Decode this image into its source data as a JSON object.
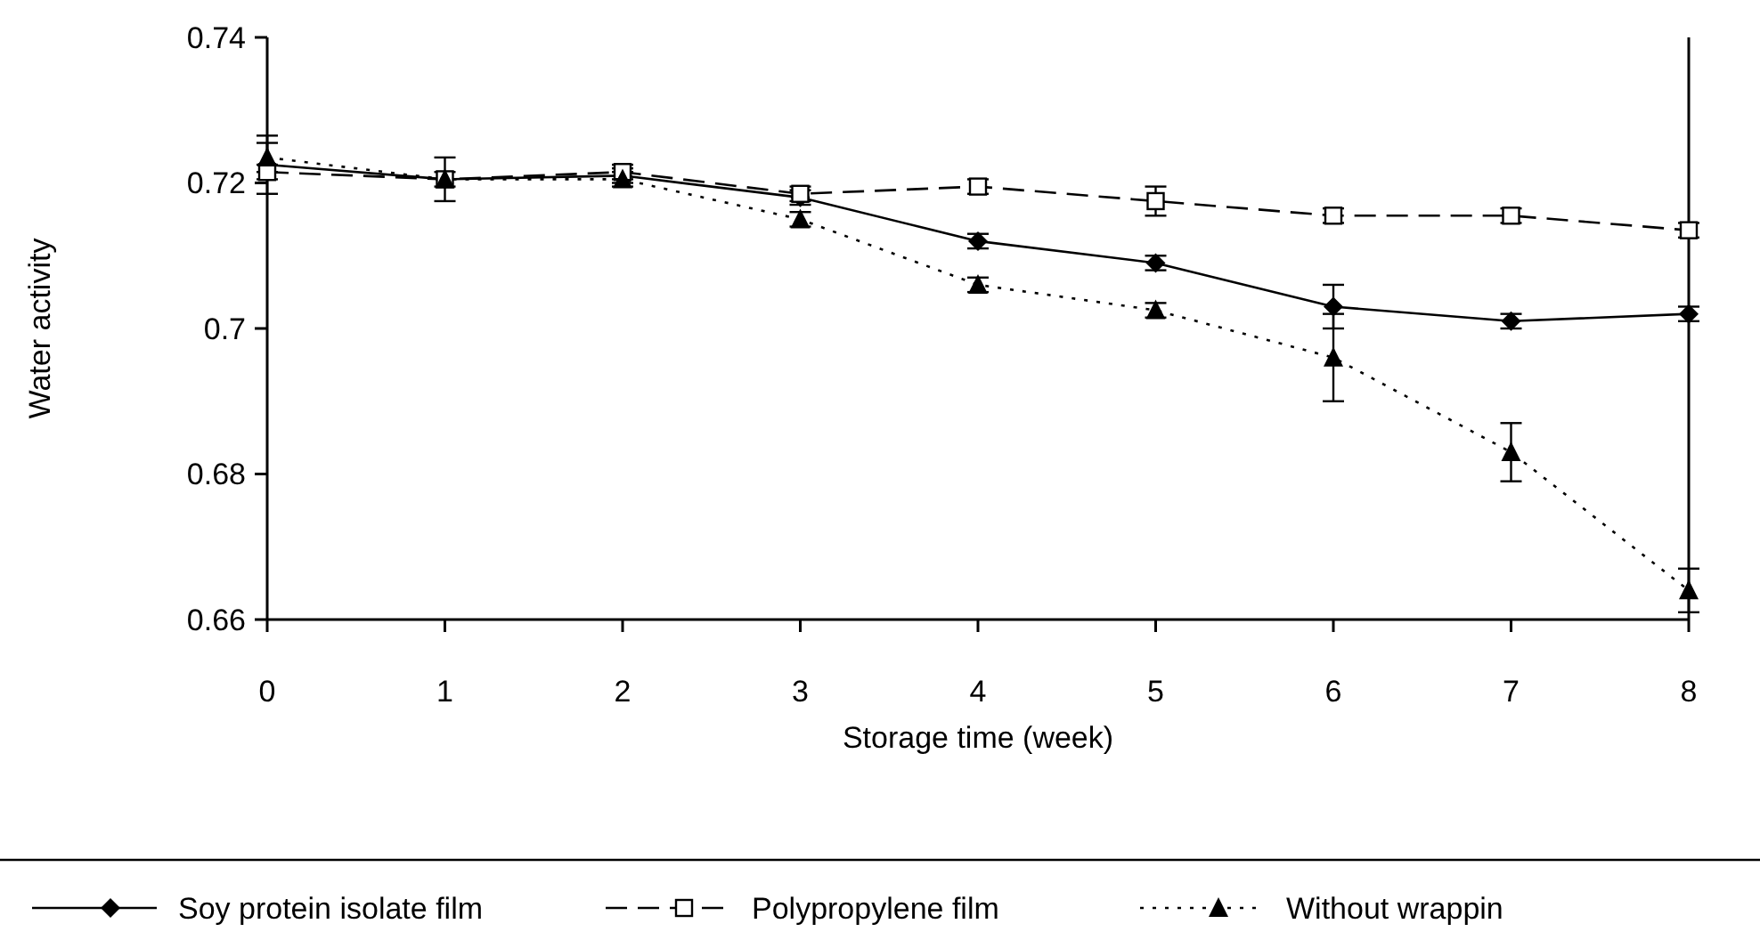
{
  "chart_data": {
    "type": "line",
    "xlabel": "Storage time (week)",
    "ylabel": "Water activity",
    "x": [
      0,
      1,
      2,
      3,
      4,
      5,
      6,
      7,
      8
    ],
    "xlim": [
      0,
      8
    ],
    "xticks": [
      0,
      1,
      2,
      3,
      4,
      5,
      6,
      7,
      8
    ],
    "ylim": [
      0.66,
      0.74
    ],
    "yticks": [
      0.66,
      0.68,
      0.7,
      0.72,
      0.74
    ],
    "grid": false,
    "legend": "bottom",
    "series": [
      {
        "name": "Soy protein isolate film",
        "color": "#000000",
        "marker": "diamond",
        "line_style": "solid",
        "values": [
          0.7225,
          0.7205,
          0.721,
          0.718,
          0.712,
          0.709,
          0.703,
          0.701,
          0.702
        ],
        "errors": [
          0.004,
          0.003,
          0.001,
          0.001,
          0.001,
          0.001,
          0.003,
          0.001,
          0.001
        ]
      },
      {
        "name": "Polypropylene film",
        "color": "#000000",
        "marker": "square",
        "line_style": "dashed",
        "values": [
          0.7215,
          0.7205,
          0.7215,
          0.7185,
          0.7195,
          0.7175,
          0.7155,
          0.7155,
          0.7135
        ],
        "errors": [
          0.001,
          null,
          0.001,
          0.001,
          0.001,
          0.002,
          0.001,
          0.001,
          0.001
        ]
      },
      {
        "name": "Without wrappin",
        "color": "#000000",
        "marker": "triangle",
        "line_style": "dotted",
        "values": [
          0.7235,
          0.7205,
          0.7205,
          0.715,
          0.706,
          0.7025,
          0.696,
          0.683,
          0.664
        ],
        "errors": [
          0.002,
          0.001,
          0.001,
          0.001,
          0.001,
          0.001,
          0.006,
          0.004,
          0.003
        ]
      }
    ]
  }
}
